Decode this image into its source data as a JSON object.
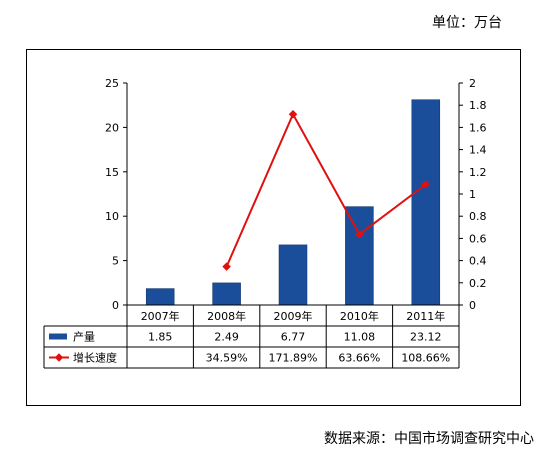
{
  "unit_label": "单位：万台",
  "source_label": "数据来源：中国市场调查研究中心",
  "colors": {
    "bar": "#1a4e9a",
    "line": "#e01010",
    "axis": "#000000"
  },
  "chart_data": {
    "type": "bar",
    "categories": [
      "2007年",
      "2008年",
      "2009年",
      "2010年",
      "2011年"
    ],
    "ylim_left": [
      0,
      25
    ],
    "yticks_left": [
      "0",
      "5",
      "10",
      "15",
      "20",
      "25"
    ],
    "ylim_right": [
      0,
      2
    ],
    "yticks_right": [
      "0",
      "0.2",
      "0.4",
      "0.6",
      "0.8",
      "1",
      "1.2",
      "1.4",
      "1.6",
      "1.8",
      "2"
    ],
    "legend_position": "table-left",
    "series": [
      {
        "name": "产量",
        "kind": "bar",
        "axis": "left",
        "values": [
          1.85,
          2.49,
          6.77,
          11.08,
          23.12
        ],
        "labels": [
          "1.85",
          "2.49",
          "6.77",
          "11.08",
          "23.12"
        ]
      },
      {
        "name": "增长速度",
        "kind": "line",
        "axis": "right",
        "values": [
          null,
          0.3459,
          1.7189,
          0.6366,
          1.0866
        ],
        "labels": [
          "",
          "34.59%",
          "171.89%",
          "63.66%",
          "108.66%"
        ]
      }
    ]
  }
}
